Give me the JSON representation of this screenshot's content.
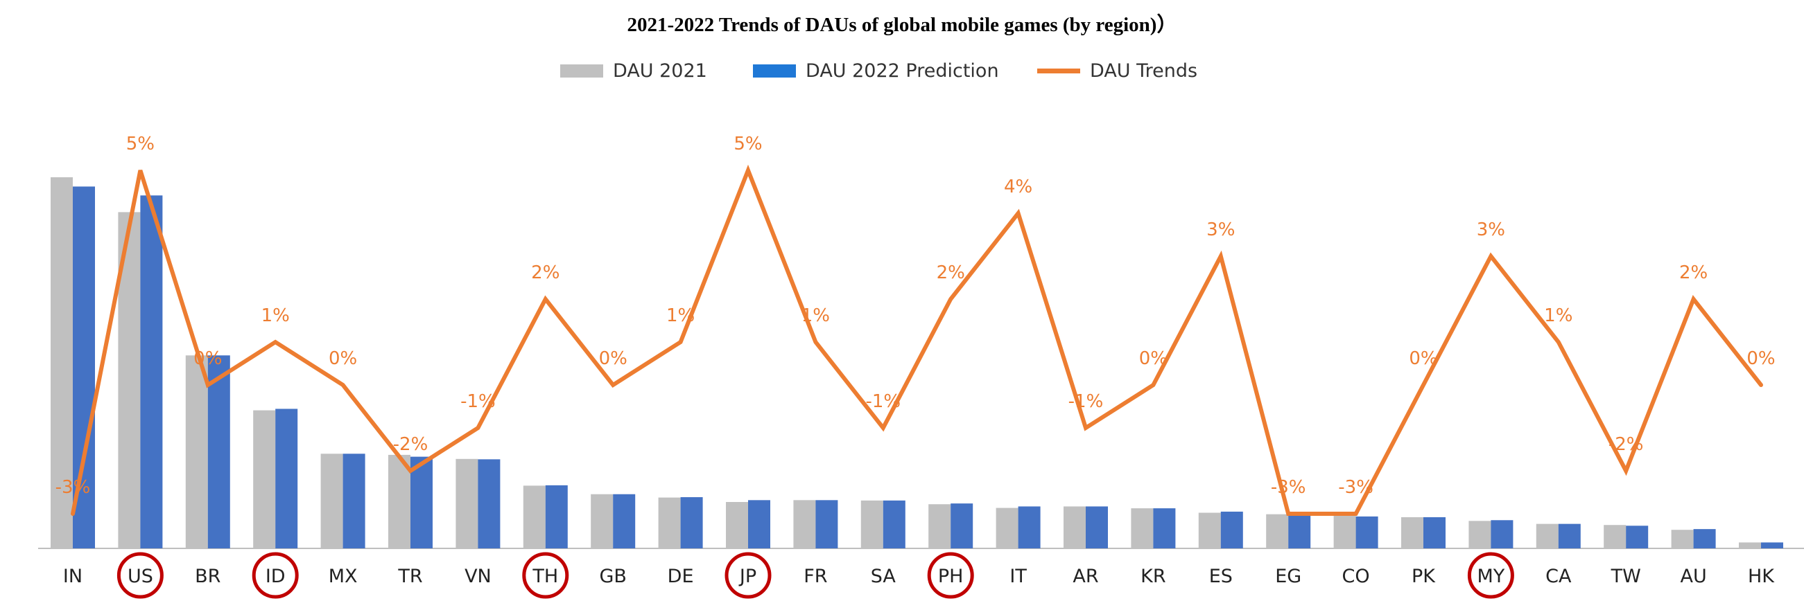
{
  "chart_data": {
    "type": "bar",
    "title": "2021-2022 Trends of DAUs of global mobile games (by region)）",
    "categories": [
      "IN",
      "US",
      "BR",
      "ID",
      "MX",
      "TR",
      "VN",
      "TH",
      "GB",
      "DE",
      "JP",
      "FR",
      "SA",
      "PH",
      "IT",
      "AR",
      "KR",
      "ES",
      "EG",
      "CO",
      "PK",
      "MY",
      "CA",
      "TW",
      "AU",
      "HK"
    ],
    "highlighted": [
      "US",
      "ID",
      "TH",
      "JP",
      "PH",
      "MY"
    ],
    "series": [
      {
        "name": "DAU 2021",
        "kind": "bar",
        "color": "#c0c0c0",
        "values": [
          100,
          90.6,
          52,
          37.2,
          25.5,
          25.2,
          24.1,
          16.9,
          14.6,
          13.7,
          12.5,
          13,
          12.9,
          11.9,
          10.9,
          11.3,
          10.8,
          9.6,
          9.2,
          8.8,
          8.4,
          7.4,
          6.6,
          6.3,
          5,
          1.6
        ]
      },
      {
        "name": "DAU 2022 Prediction",
        "kind": "bar",
        "color": "#4472c4",
        "values": [
          97.5,
          95.1,
          52,
          37.6,
          25.5,
          24.7,
          24,
          17,
          14.6,
          13.8,
          13,
          13,
          12.9,
          12.1,
          11.3,
          11.3,
          10.8,
          9.9,
          9,
          8.6,
          8.4,
          7.6,
          6.6,
          6.1,
          5.2,
          1.6
        ]
      },
      {
        "name": "DAU Trends",
        "kind": "line",
        "color": "#ed7d31",
        "values": [
          -3,
          5,
          0,
          1,
          0,
          -2,
          -1,
          2,
          0,
          1,
          5,
          1,
          -1,
          2,
          4,
          -1,
          0,
          3,
          -3,
          -3,
          0,
          3,
          1,
          -2,
          2,
          0
        ],
        "labels": [
          "-3%",
          "5%",
          "0%",
          "1%",
          "0%",
          "-2%",
          "-1%",
          "2%",
          "0%",
          "1%",
          "5%",
          "1%",
          "-1%",
          "2%",
          "4%",
          "-1%",
          "0%",
          "3%",
          "-3%",
          "-3%",
          "0%",
          "3%",
          "1%",
          "-2%",
          "2%",
          "0%"
        ]
      }
    ]
  },
  "colors": {
    "highlight_circle": "#c00000",
    "axis": "#bfbfbf"
  }
}
